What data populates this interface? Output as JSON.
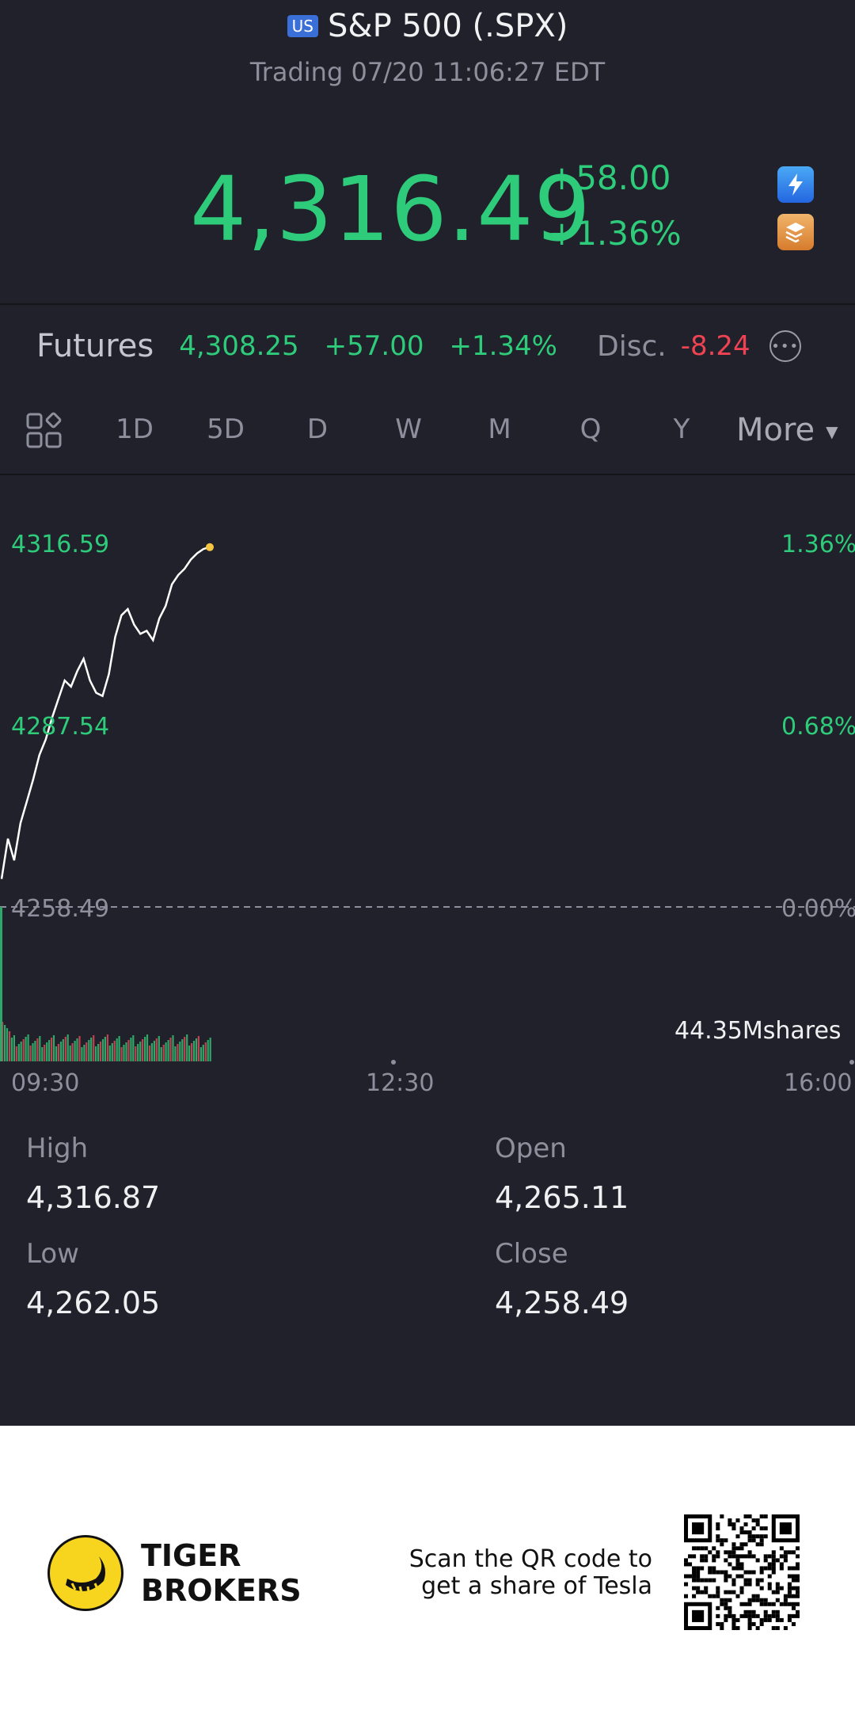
{
  "header": {
    "badge": "US",
    "title": "S&P 500 (.SPX)",
    "subtitle": "Trading 07/20 11:06:27 EDT"
  },
  "quote": {
    "price": "4,316.49",
    "change": "+58.00",
    "change_pct": "+1.36%",
    "icons": [
      "lightning-icon",
      "layers-icon"
    ],
    "accent_color": "#2ecb7a"
  },
  "futures": {
    "label": "Futures",
    "price": "4,308.25",
    "change": "+57.00",
    "change_pct": "+1.34%",
    "disc_label": "Disc.",
    "disc_value": "-8.24",
    "negative_color": "#ef4354"
  },
  "tabs": {
    "items": [
      "1D",
      "5D",
      "D",
      "W",
      "M",
      "Q",
      "Y"
    ],
    "active": "1D",
    "more_label": "More"
  },
  "chart_data": {
    "type": "line",
    "y_left_ticks": [
      "4316.59",
      "4287.54",
      "4258.49"
    ],
    "y_right_ticks": [
      "1.36%",
      "0.68%",
      "0.00%"
    ],
    "x_ticks": [
      "09:30",
      "12:30",
      "16:00"
    ],
    "ylim": [
      4258.49,
      4316.59
    ],
    "baseline": 4258.49,
    "volume_label": "44.35Mshares",
    "series": [
      {
        "values": [
          4263.0,
          4269.5,
          4266.0,
          4272.0,
          4275.5,
          4279.0,
          4283.0,
          4285.5,
          4289.0,
          4292.0,
          4295.0,
          4294.0,
          4296.5,
          4298.5,
          4295.0,
          4293.0,
          4292.5,
          4296.0,
          4302.0,
          4305.5,
          4306.5,
          4304.0,
          4302.5,
          4303.0,
          4301.5,
          4305.0,
          4307.0,
          4310.5,
          4312.0,
          4313.0,
          4314.5,
          4315.5,
          4316.2,
          4316.49
        ]
      }
    ]
  },
  "stats": {
    "high_label": "High",
    "high": "4,316.87",
    "open_label": "Open",
    "open": "4,265.11",
    "low_label": "Low",
    "low": "4,262.05",
    "close_label": "Close",
    "close": "4,258.49"
  },
  "footer": {
    "brand_line1": "TIGER",
    "brand_line2": "BROKERS",
    "scan_line1": "Scan the QR code to",
    "scan_line2": "get a share of Tesla"
  }
}
